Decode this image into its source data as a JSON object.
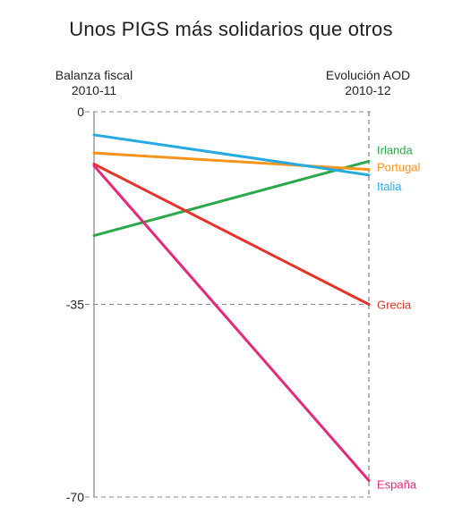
{
  "chart_data": {
    "type": "line",
    "title": "Unos PIGS más solidarios que otros",
    "x": [
      {
        "line1": "Balanza fiscal",
        "line2": "2010-11"
      },
      {
        "line1": "Evolución AOD",
        "line2": "2010-12"
      }
    ],
    "yticks": [
      "0",
      "-35",
      "-70"
    ],
    "ylim": [
      -70,
      0
    ],
    "grid": true,
    "series": [
      {
        "name": "Irlanda",
        "color": "#2aa84a",
        "values": [
          -22.5,
          -9
        ]
      },
      {
        "name": "Portugal",
        "color": "#f7941d",
        "values": [
          -7.5,
          -10.5
        ]
      },
      {
        "name": "Italia",
        "color": "#27aae1",
        "values": [
          -4.2,
          -11.5
        ]
      },
      {
        "name": "Grecia",
        "color": "#e5332a",
        "values": [
          -9.5,
          -35
        ]
      },
      {
        "name": "España",
        "color": "#e4297a",
        "values": [
          -9.8,
          -67
        ]
      }
    ]
  }
}
